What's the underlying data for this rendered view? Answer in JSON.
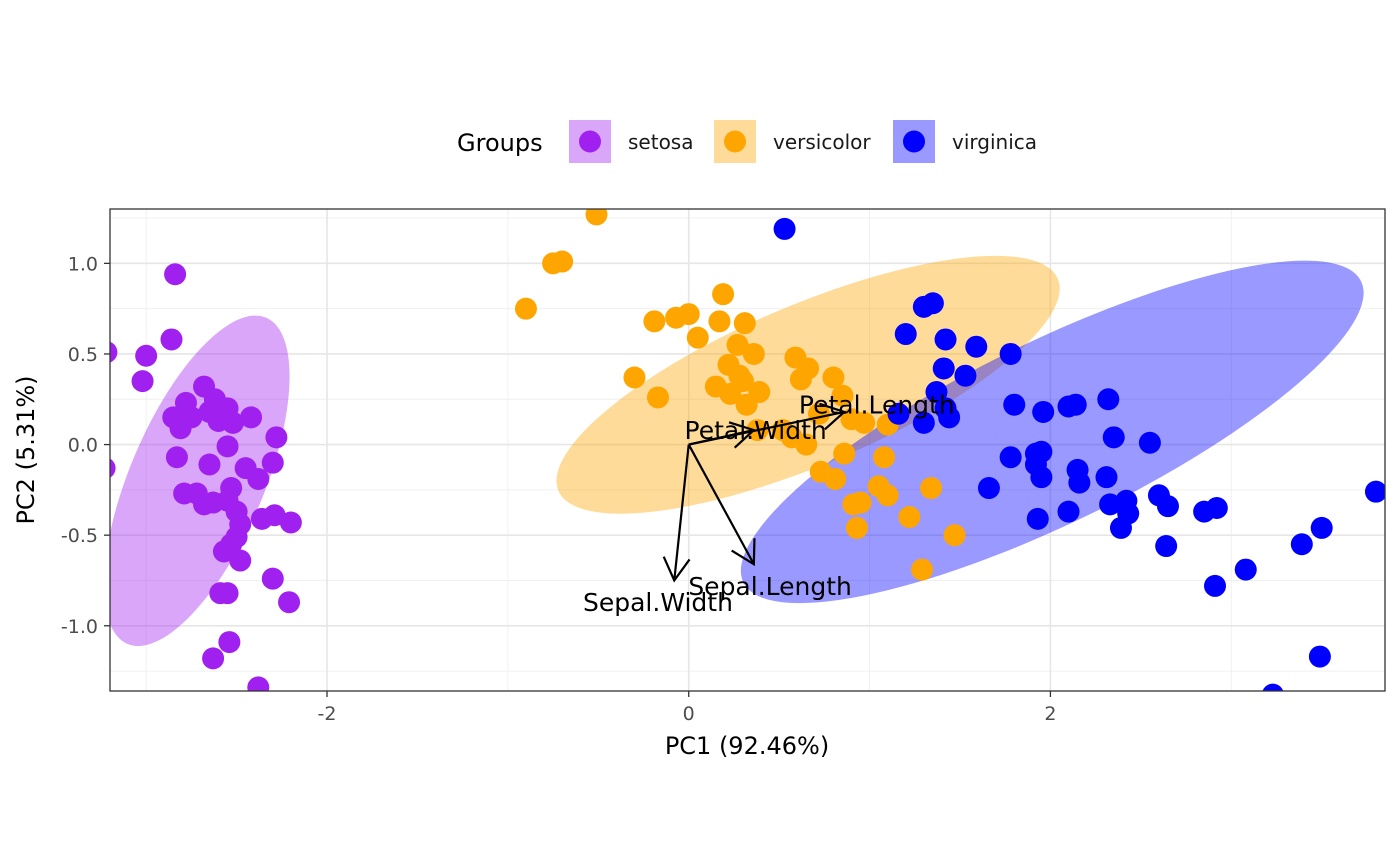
{
  "chart_data": {
    "type": "scatter",
    "title": "",
    "xlabel": "PC1 (92.46%)",
    "ylabel": "PC2 (5.31%)",
    "xlim": [
      -3.2,
      3.85
    ],
    "ylim": [
      -1.36,
      1.3
    ],
    "x_ticks": [
      -2,
      0,
      2
    ],
    "y_ticks": [
      -1.0,
      -0.5,
      0.0,
      0.5,
      1.0
    ],
    "x_tick_labels": [
      "-2",
      "0",
      "2"
    ],
    "y_tick_labels": [
      "-1.0",
      "-0.5",
      "0.0",
      "0.5",
      "1.0"
    ],
    "grid": true,
    "legend": {
      "title": "Groups",
      "position": "top"
    },
    "series": [
      {
        "name": "setosa",
        "color": "#A020F0",
        "ellipse": {
          "cx": -2.72,
          "cy": -0.2,
          "rx": 0.98,
          "ry": 0.37,
          "angle_deg": 113
        },
        "points": [
          [
            -2.84,
            0.94
          ],
          [
            -2.86,
            0.58
          ],
          [
            -3.0,
            0.49
          ],
          [
            -3.22,
            0.51
          ],
          [
            -3.02,
            0.35
          ],
          [
            -3.23,
            -0.13
          ],
          [
            -2.78,
            0.23
          ],
          [
            -2.68,
            0.32
          ],
          [
            -2.62,
            0.25
          ],
          [
            -2.55,
            0.2
          ],
          [
            -2.85,
            0.15
          ],
          [
            -2.75,
            0.15
          ],
          [
            -2.6,
            0.13
          ],
          [
            -2.52,
            0.12
          ],
          [
            -2.65,
            0.18
          ],
          [
            -2.42,
            0.15
          ],
          [
            -2.81,
            0.09
          ],
          [
            -2.55,
            -0.01
          ],
          [
            -2.28,
            0.04
          ],
          [
            -2.83,
            -0.07
          ],
          [
            -2.65,
            -0.11
          ],
          [
            -2.45,
            -0.13
          ],
          [
            -2.3,
            -0.1
          ],
          [
            -2.38,
            -0.19
          ],
          [
            -2.79,
            -0.27
          ],
          [
            -2.72,
            -0.27
          ],
          [
            -2.63,
            -0.32
          ],
          [
            -2.53,
            -0.24
          ],
          [
            -2.55,
            -0.31
          ],
          [
            -2.68,
            -0.33
          ],
          [
            -2.5,
            -0.37
          ],
          [
            -2.36,
            -0.41
          ],
          [
            -2.29,
            -0.39
          ],
          [
            -2.2,
            -0.43
          ],
          [
            -2.48,
            -0.44
          ],
          [
            -2.5,
            -0.51
          ],
          [
            -2.53,
            -0.55
          ],
          [
            -2.57,
            -0.59
          ],
          [
            -2.48,
            -0.64
          ],
          [
            -2.3,
            -0.74
          ],
          [
            -2.59,
            -0.82
          ],
          [
            -2.55,
            -0.82
          ],
          [
            -2.21,
            -0.87
          ],
          [
            -2.54,
            -1.09
          ],
          [
            -2.63,
            -1.18
          ],
          [
            -2.38,
            -1.34
          ]
        ]
      },
      {
        "name": "versicolor",
        "color": "#FFA500",
        "ellipse": {
          "cx": 0.66,
          "cy": 0.33,
          "rx": 1.5,
          "ry": 0.44,
          "angle_deg": -23
        },
        "points": [
          [
            -0.51,
            1.27
          ],
          [
            -0.75,
            1.0
          ],
          [
            -0.7,
            1.01
          ],
          [
            -0.9,
            0.75
          ],
          [
            0.19,
            0.83
          ],
          [
            -0.19,
            0.68
          ],
          [
            -0.07,
            0.7
          ],
          [
            0.0,
            0.72
          ],
          [
            0.17,
            0.68
          ],
          [
            0.31,
            0.67
          ],
          [
            0.05,
            0.59
          ],
          [
            0.27,
            0.55
          ],
          [
            0.36,
            0.5
          ],
          [
            0.22,
            0.44
          ],
          [
            0.59,
            0.48
          ],
          [
            0.66,
            0.42
          ],
          [
            0.28,
            0.38
          ],
          [
            0.15,
            0.32
          ],
          [
            0.3,
            0.35
          ],
          [
            0.39,
            0.29
          ],
          [
            0.23,
            0.28
          ],
          [
            0.32,
            0.22
          ],
          [
            -0.3,
            0.37
          ],
          [
            -0.17,
            0.26
          ],
          [
            0.62,
            0.36
          ],
          [
            0.8,
            0.37
          ],
          [
            0.85,
            0.27
          ],
          [
            0.72,
            0.17
          ],
          [
            0.9,
            0.14
          ],
          [
            0.97,
            0.12
          ],
          [
            1.1,
            0.11
          ],
          [
            0.52,
            0.08
          ],
          [
            0.57,
            0.04
          ],
          [
            0.38,
            0.08
          ],
          [
            0.65,
            0.0
          ],
          [
            0.86,
            -0.05
          ],
          [
            1.08,
            -0.07
          ],
          [
            0.73,
            -0.15
          ],
          [
            0.81,
            -0.19
          ],
          [
            1.05,
            -0.23
          ],
          [
            1.1,
            -0.28
          ],
          [
            0.91,
            -0.33
          ],
          [
            0.95,
            -0.32
          ],
          [
            1.34,
            -0.24
          ],
          [
            0.93,
            -0.46
          ],
          [
            1.22,
            -0.4
          ],
          [
            1.47,
            -0.5
          ],
          [
            1.29,
            -0.69
          ]
        ]
      },
      {
        "name": "virginica",
        "color": "#0000FF",
        "ellipse": {
          "cx": 2.01,
          "cy": 0.07,
          "rx": 1.9,
          "ry": 0.5,
          "angle_deg": -26
        },
        "points": [
          [
            0.53,
            1.19
          ],
          [
            1.3,
            0.76
          ],
          [
            1.35,
            0.78
          ],
          [
            1.2,
            0.61
          ],
          [
            1.42,
            0.58
          ],
          [
            1.59,
            0.54
          ],
          [
            1.78,
            0.5
          ],
          [
            1.41,
            0.42
          ],
          [
            1.53,
            0.38
          ],
          [
            1.37,
            0.29
          ],
          [
            1.42,
            0.2
          ],
          [
            1.8,
            0.22
          ],
          [
            1.96,
            0.18
          ],
          [
            2.1,
            0.21
          ],
          [
            2.14,
            0.22
          ],
          [
            2.32,
            0.25
          ],
          [
            1.16,
            0.17
          ],
          [
            1.3,
            0.12
          ],
          [
            1.44,
            0.15
          ],
          [
            2.35,
            0.04
          ],
          [
            2.55,
            0.01
          ],
          [
            1.78,
            -0.07
          ],
          [
            1.92,
            -0.05
          ],
          [
            1.95,
            -0.04
          ],
          [
            1.92,
            -0.11
          ],
          [
            1.95,
            -0.18
          ],
          [
            2.15,
            -0.14
          ],
          [
            2.16,
            -0.21
          ],
          [
            2.31,
            -0.18
          ],
          [
            2.42,
            -0.31
          ],
          [
            2.6,
            -0.28
          ],
          [
            2.65,
            -0.34
          ],
          [
            2.33,
            -0.33
          ],
          [
            2.43,
            -0.38
          ],
          [
            2.1,
            -0.37
          ],
          [
            2.39,
            -0.46
          ],
          [
            1.66,
            -0.24
          ],
          [
            1.93,
            -0.41
          ],
          [
            2.85,
            -0.37
          ],
          [
            2.92,
            -0.35
          ],
          [
            2.64,
            -0.56
          ],
          [
            3.08,
            -0.69
          ],
          [
            3.39,
            -0.55
          ],
          [
            3.5,
            -0.46
          ],
          [
            3.8,
            -0.26
          ],
          [
            2.91,
            -0.78
          ],
          [
            3.49,
            -1.17
          ],
          [
            3.23,
            -1.38
          ]
        ]
      }
    ],
    "loadings": [
      {
        "name": "Petal.Length",
        "x": 0.86,
        "y": 0.18,
        "label_x": 1.04,
        "label_y": 0.22
      },
      {
        "name": "Petal.Width",
        "x": 0.36,
        "y": 0.08,
        "label_x": 0.37,
        "label_y": 0.08
      },
      {
        "name": "Sepal.Length",
        "x": 0.36,
        "y": -0.66,
        "label_x": 0.45,
        "label_y": -0.78
      },
      {
        "name": "Sepal.Width",
        "x": -0.08,
        "y": -0.75,
        "label_x": -0.17,
        "label_y": -0.87
      }
    ]
  }
}
